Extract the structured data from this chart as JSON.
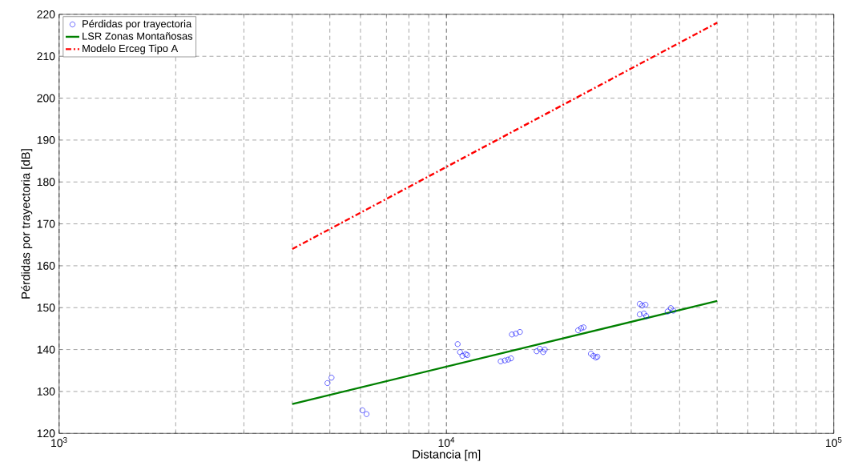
{
  "chart_data": {
    "type": "scatter",
    "xlabel": "Distancia [m]",
    "ylabel": "Pérdidas por trayectoria [dB]",
    "log": "x",
    "grid": true,
    "legend": "top left",
    "xlim": [
      1000,
      100000
    ],
    "xticks": [
      {
        "value": 1000,
        "label": "10$^{3}$"
      },
      {
        "value": 10000,
        "label": "10$^{4}$"
      },
      {
        "value": 100000,
        "label": "10$^{5}$"
      }
    ],
    "ylim": [
      120,
      220
    ],
    "yticks": [
      120,
      130,
      140,
      150,
      160,
      170,
      180,
      190,
      200,
      210,
      220
    ],
    "series": [
      {
        "name": "Pérdidas por trayectoria",
        "marker": "circle",
        "color": "#0000ff",
        "x": [
          4930,
          5050,
          6070,
          6220,
          10690,
          10840,
          11000,
          11210,
          11320,
          13810,
          14150,
          14430,
          14680,
          14760,
          15110,
          15480,
          17100,
          17420,
          17770,
          17940,
          21880,
          22280,
          22600,
          23610,
          23950,
          24300,
          24530,
          31560,
          32040,
          32650,
          31560,
          32350,
          32800,
          37250,
          37960,
          38530
        ],
        "values": [
          132.0,
          133.3,
          125.5,
          124.6,
          141.3,
          139.4,
          138.5,
          138.9,
          138.7,
          137.2,
          137.4,
          137.6,
          137.9,
          143.6,
          143.8,
          144.2,
          139.6,
          140.2,
          139.4,
          140.0,
          144.6,
          145.1,
          145.3,
          139.0,
          138.5,
          138.1,
          138.3,
          150.9,
          150.5,
          150.7,
          148.4,
          148.6,
          148.0,
          149.1,
          149.9,
          149.3
        ]
      },
      {
        "name": "LSR Zonas Montañosas",
        "type": "line",
        "line_style": "solid",
        "color": "#008000",
        "x": [
          4000,
          50000
        ],
        "values": [
          127.0,
          151.6
        ]
      },
      {
        "name": "Modelo Erceg Tipo A",
        "type": "line",
        "line_style": "dashdot",
        "color": "#ff0000",
        "x": [
          4000,
          50000
        ],
        "values": [
          164.0,
          218.0
        ]
      }
    ]
  }
}
